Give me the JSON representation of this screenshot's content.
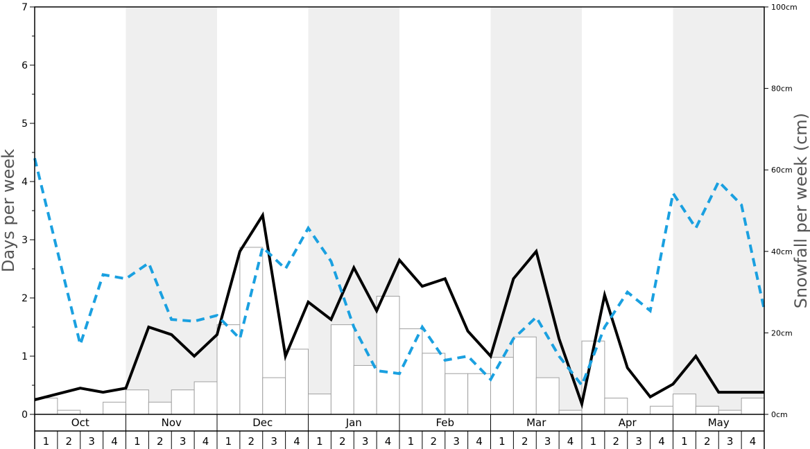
{
  "chart_data": {
    "type": "bar+line",
    "left_axis": {
      "label": "Days per week",
      "range": [
        0,
        7
      ],
      "ticks": [
        "0",
        "1",
        "2",
        "3",
        "4",
        "5",
        "6",
        "7"
      ]
    },
    "right_axis": {
      "label": "Snowfall per week (cm)",
      "range": [
        0,
        100
      ],
      "ticks": [
        "0cm",
        "20cm",
        "40cm",
        "60cm",
        "80cm",
        "100cm"
      ]
    },
    "months": [
      "Oct",
      "Nov",
      "Dec",
      "Jan",
      "Feb",
      "Mar",
      "Apr",
      "May"
    ],
    "weeks": [
      "1",
      "2",
      "3",
      "4"
    ],
    "series": [
      {
        "kind": "bar",
        "axis": "right",
        "values": [
          4,
          1,
          0,
          3,
          6,
          3,
          6,
          8,
          22,
          41,
          9,
          16,
          5,
          22,
          12,
          29,
          21,
          15,
          10,
          10,
          14,
          19,
          9,
          1,
          18,
          4,
          0,
          2,
          5,
          2,
          1,
          4
        ]
      },
      {
        "kind": "line",
        "style": "solid",
        "color": "#000000",
        "axis": "left",
        "values": [
          0.25,
          0.35,
          0.45,
          0.38,
          0.45,
          1.5,
          1.37,
          1.0,
          1.37,
          2.8,
          3.42,
          1.0,
          1.93,
          1.63,
          2.52,
          1.78,
          2.65,
          2.2,
          2.33,
          1.43,
          1.0,
          2.33,
          2.8,
          1.3,
          0.18,
          2.05,
          0.8,
          0.3,
          0.52,
          1.0,
          0.38,
          0.38,
          0.38
        ]
      },
      {
        "kind": "line",
        "style": "dashed",
        "color": "#1aa0e0",
        "axis": "left",
        "values": [
          4.4,
          2.8,
          1.2,
          2.4,
          2.33,
          2.6,
          1.63,
          1.6,
          1.7,
          1.3,
          2.87,
          2.5,
          3.2,
          2.63,
          1.5,
          0.75,
          0.7,
          1.5,
          0.93,
          1.0,
          0.6,
          1.3,
          1.67,
          1.0,
          0.5,
          1.5,
          2.1,
          1.78,
          3.8,
          3.2,
          4.0,
          3.6,
          1.8
        ]
      }
    ],
    "shaded_months": [
      "Nov",
      "Jan",
      "Mar",
      "May"
    ]
  }
}
